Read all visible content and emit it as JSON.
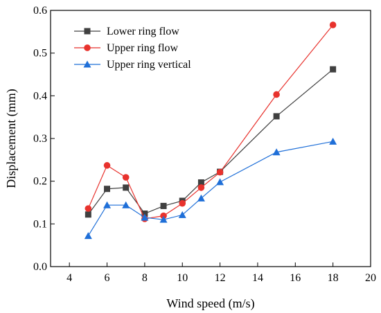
{
  "chart_data": {
    "type": "line",
    "title": "",
    "xlabel": "Wind speed (m/s)",
    "ylabel": "Displacement (mm)",
    "xlim": [
      3,
      20
    ],
    "ylim": [
      0,
      0.6
    ],
    "xticks": [
      4,
      6,
      8,
      10,
      12,
      14,
      16,
      18,
      20
    ],
    "yticks": [
      0.0,
      0.1,
      0.2,
      0.3,
      0.4,
      0.5,
      0.6
    ],
    "xtick_labels": [
      "4",
      "6",
      "8",
      "10",
      "12",
      "14",
      "16",
      "18",
      "20"
    ],
    "ytick_labels": [
      "0.0",
      "0.1",
      "0.2",
      "0.3",
      "0.4",
      "0.5",
      "0.6"
    ],
    "x": [
      5,
      6,
      7,
      8,
      9,
      10,
      11,
      12,
      15,
      18
    ],
    "series": [
      {
        "name": "Lower ring flow",
        "color": "#404040",
        "marker": "square",
        "values": [
          0.122,
          0.182,
          0.185,
          0.124,
          0.142,
          0.154,
          0.197,
          0.222,
          0.352,
          0.462
        ]
      },
      {
        "name": "Upper ring flow",
        "color": "#e8322d",
        "marker": "circle",
        "values": [
          0.136,
          0.237,
          0.209,
          0.112,
          0.119,
          0.148,
          0.185,
          0.221,
          0.403,
          0.566
        ]
      },
      {
        "name": "Upper ring vertical",
        "color": "#1f6fd8",
        "marker": "triangle",
        "values": [
          0.072,
          0.144,
          0.144,
          0.115,
          0.11,
          0.121,
          0.16,
          0.198,
          0.268,
          0.293
        ]
      }
    ],
    "legend_position": "top-left",
    "grid": false
  }
}
